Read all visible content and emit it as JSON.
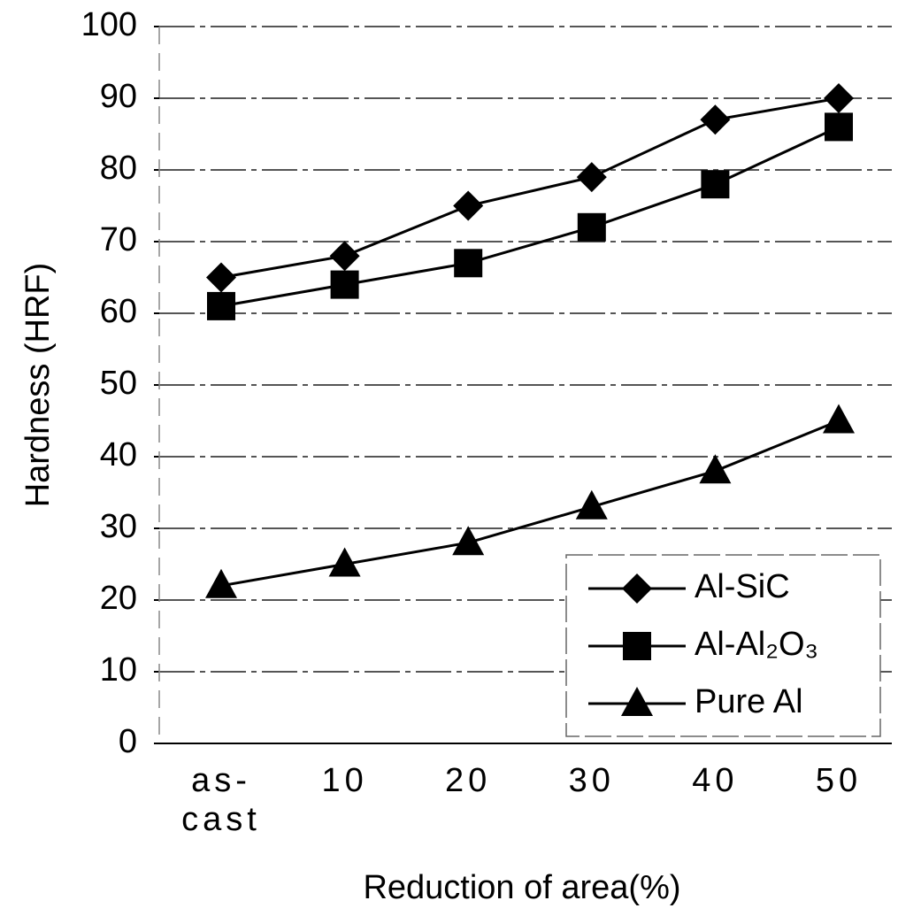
{
  "chart_data": {
    "type": "line",
    "x_label": "Reduction of area(%)",
    "y_label": "Hardness (HRF)",
    "categories": [
      "as-cast",
      "10",
      "20",
      "30",
      "40",
      "50"
    ],
    "series": [
      {
        "name": "Al-SiC",
        "color": "#000000",
        "marker": "diamond",
        "values": [
          65,
          68,
          75,
          79,
          87,
          90
        ]
      },
      {
        "name": "Al-Al₂O₃",
        "color": "#000000",
        "marker": "square",
        "values": [
          61,
          64,
          67,
          72,
          78,
          86
        ]
      },
      {
        "name": "Pure Al",
        "color": "#000000",
        "marker": "triangle",
        "values": [
          22,
          25,
          28,
          33,
          38,
          45
        ]
      }
    ],
    "ylim": [
      0,
      100
    ],
    "yticks": [
      0,
      10,
      20,
      30,
      40,
      50,
      60,
      70,
      80,
      90,
      100
    ],
    "grid": true,
    "legend": "lower right"
  }
}
